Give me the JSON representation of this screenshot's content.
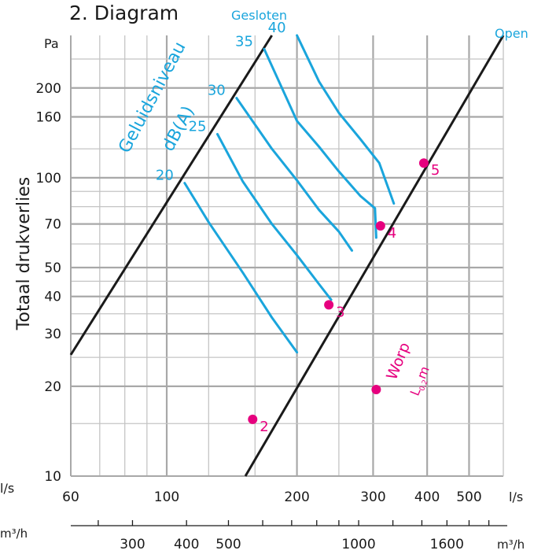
{
  "chart_data": {
    "type": "line",
    "title": "2. Diagram",
    "ylabel": "Totaal drukverlies",
    "y_unit": "Pa",
    "x_unit_ls": "l/s",
    "x_unit_m3h": "m³/h",
    "x_unit_m3h_left": "m³/h",
    "x_scale": "log",
    "y_scale": "log",
    "xlim": [
      60,
      600
    ],
    "ylim": [
      10,
      300
    ],
    "grid": true,
    "x_ticks_ls": [
      {
        "value": 60,
        "label": "60"
      },
      {
        "value": 100,
        "label": "100"
      },
      {
        "value": 200,
        "label": "200"
      },
      {
        "value": 300,
        "label": "300"
      },
      {
        "value": 400,
        "label": "400"
      },
      {
        "value": 500,
        "label": "500"
      }
    ],
    "x_ticks_m3h": [
      {
        "value": 300,
        "label": "300"
      },
      {
        "value": 400,
        "label": "400"
      },
      {
        "value": 500,
        "label": "500"
      },
      {
        "value": 1000,
        "label": "1000"
      },
      {
        "value": 1600,
        "label": "1600"
      }
    ],
    "x_ticks_m3h_minor": [
      250,
      300,
      400,
      500,
      600,
      700,
      800,
      900,
      1000,
      1200,
      1400,
      1600,
      1800,
      2000
    ],
    "y_ticks": [
      {
        "value": 10,
        "label": "10"
      },
      {
        "value": 20,
        "label": "20"
      },
      {
        "value": 30,
        "label": "30"
      },
      {
        "value": 40,
        "label": "40"
      },
      {
        "value": 50,
        "label": "50"
      },
      {
        "value": 70,
        "label": "70"
      },
      {
        "value": 100,
        "label": "100"
      },
      {
        "value": 160,
        "label": "160"
      },
      {
        "value": 200,
        "label": "200"
      }
    ],
    "x_grid": [
      70,
      80,
      90,
      100,
      125,
      160,
      200,
      250,
      300,
      400,
      500
    ],
    "y_grid": [
      15,
      20,
      25,
      30,
      35,
      40,
      45,
      50,
      60,
      70,
      80,
      90,
      100,
      125,
      160,
      200,
      250
    ],
    "series": [
      {
        "name": "Gesloten",
        "color": "#1a1a1a",
        "points": [
          [
            60,
            25.5
          ],
          [
            175,
            300
          ]
        ]
      },
      {
        "name": "Open",
        "color": "#1a1a1a",
        "points": [
          [
            152,
            10
          ],
          [
            600,
            300
          ]
        ]
      }
    ],
    "noise_curves": {
      "label_line1": "Geluidsniveau",
      "label_line2": "dB(A)",
      "color": "#1aa5dc",
      "curves": [
        {
          "label": "20",
          "points": [
            [
              110,
              96
            ],
            [
              125,
              71
            ],
            [
              150,
              48
            ],
            [
              175,
              34
            ],
            [
              200,
              26
            ]
          ]
        },
        {
          "label": "25",
          "points": [
            [
              131,
              140
            ],
            [
              150,
              97
            ],
            [
              175,
              70
            ],
            [
              200,
              55
            ],
            [
              225,
              44
            ],
            [
              240,
              39
            ]
          ]
        },
        {
          "label": "30",
          "points": [
            [
              145,
              185
            ],
            [
              175,
              125
            ],
            [
              200,
              98
            ],
            [
              225,
              78
            ],
            [
              250,
              66
            ],
            [
              268,
              57
            ]
          ]
        },
        {
          "label": "35",
          "points": [
            [
              168,
              270
            ],
            [
              200,
              155
            ],
            [
              225,
              127
            ],
            [
              250,
              105
            ],
            [
              280,
              87
            ],
            [
              303,
              79
            ],
            [
              305,
              63
            ]
          ]
        },
        {
          "label": "40",
          "points": [
            [
              200,
              300
            ],
            [
              225,
              210
            ],
            [
              250,
              165
            ],
            [
              280,
              135
            ],
            [
              310,
              112
            ],
            [
              335,
              82
            ]
          ]
        }
      ]
    },
    "points": [
      {
        "label": "2",
        "x": 158,
        "y": 15.5,
        "color": "#e6007e"
      },
      {
        "label": "3",
        "x": 237,
        "y": 37.5,
        "color": "#e6007e"
      },
      {
        "label": "4",
        "x": 312,
        "y": 69,
        "color": "#e6007e"
      },
      {
        "label": "5",
        "x": 393,
        "y": 112,
        "color": "#e6007e"
      }
    ],
    "throw_marker": {
      "label_line1": "Worp",
      "label_line2": "L",
      "label_sub": "0,2",
      "label_end": "m",
      "x": 305,
      "y": 19.5,
      "color": "#e6007e"
    },
    "line_labels": {
      "closed": "Gesloten",
      "open": "Open"
    }
  }
}
